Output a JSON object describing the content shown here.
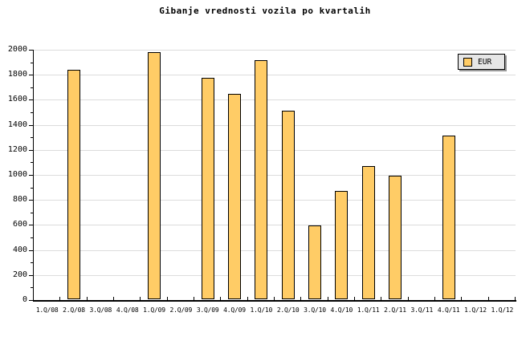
{
  "title": "Gibanje vrednosti vozila po kvartalih",
  "legend": {
    "label": "EUR"
  },
  "colors": {
    "bar_fill": "#FFCC66",
    "bar_border": "#000000",
    "grid": "#DCDCDC",
    "axis": "#000000",
    "legend_bg": "#E6E6E6"
  },
  "chart_data": {
    "type": "bar",
    "title": "Gibanje vrednosti vozila po kvartalih",
    "categories": [
      "1.Q/08",
      "2.Q/08",
      "3.Q/08",
      "4.Q/08",
      "1.Q/09",
      "2.Q/09",
      "3.Q/09",
      "4.Q/09",
      "1.Q/10",
      "2.Q/10",
      "3.Q/10",
      "4.Q/10",
      "1.Q/11",
      "2.Q/11",
      "3.Q/11",
      "4.Q/11",
      "1.Q/12",
      "1.Q/12"
    ],
    "series": [
      {
        "name": "EUR",
        "values": [
          null,
          1840,
          null,
          null,
          1980,
          null,
          1775,
          1645,
          1915,
          1510,
          595,
          870,
          1070,
          995,
          null,
          1315,
          null,
          null
        ]
      }
    ],
    "xlabel": "",
    "ylabel": "",
    "ylim": [
      0,
      2000
    ],
    "yticks": [
      0,
      200,
      400,
      600,
      800,
      1000,
      1200,
      1400,
      1600,
      1800,
      2000
    ],
    "ytick_minor_interval": 100,
    "grid": "horizontal-major",
    "legend_position": "top-right",
    "bar_color": "#FFCC66",
    "bar_border_color": "#000000"
  }
}
